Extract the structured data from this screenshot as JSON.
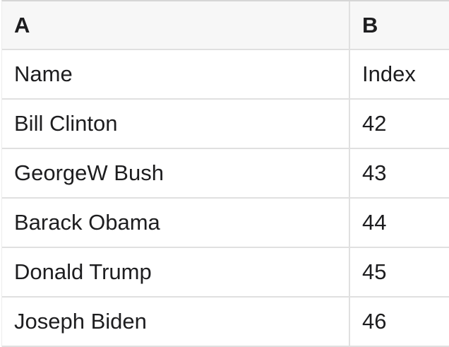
{
  "spreadsheet": {
    "column_headers": [
      "A",
      "B"
    ],
    "rows": [
      {
        "a": "Name",
        "b": "Index"
      },
      {
        "a": "Bill Clinton",
        "b": "42"
      },
      {
        "a": "GeorgeW Bush",
        "b": "43"
      },
      {
        "a": "Barack Obama",
        "b": "44"
      },
      {
        "a": "Donald Trump",
        "b": "45"
      },
      {
        "a": "Joseph Biden",
        "b": "46"
      }
    ],
    "colors": {
      "header_bg": "#f7f7f7",
      "grid_line": "#e0e0e0",
      "top_border": "#d6d6d6",
      "left_border": "#ececec",
      "text": "#1d1d1f"
    }
  }
}
